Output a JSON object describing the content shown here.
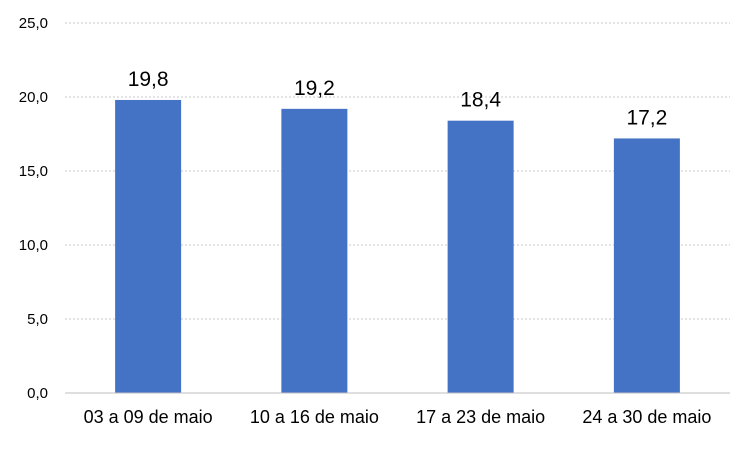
{
  "chart_data": {
    "type": "bar",
    "categories": [
      "03 a 09 de maio",
      "10 a 16 de maio",
      "17 a 23 de maio",
      "24 a 30 de maio"
    ],
    "values": [
      19.8,
      19.2,
      18.4,
      17.2
    ],
    "data_labels": [
      "19,8",
      "19,2",
      "18,4",
      "17,2"
    ],
    "y_ticks": [
      0,
      5,
      10,
      15,
      20,
      25
    ],
    "y_tick_labels": [
      "0,0",
      "5,0",
      "10,0",
      "15,0",
      "20,0",
      "25,0"
    ],
    "ylim": [
      0,
      25
    ],
    "grid": true,
    "legend": "none",
    "bar_color": "#4472C4"
  }
}
